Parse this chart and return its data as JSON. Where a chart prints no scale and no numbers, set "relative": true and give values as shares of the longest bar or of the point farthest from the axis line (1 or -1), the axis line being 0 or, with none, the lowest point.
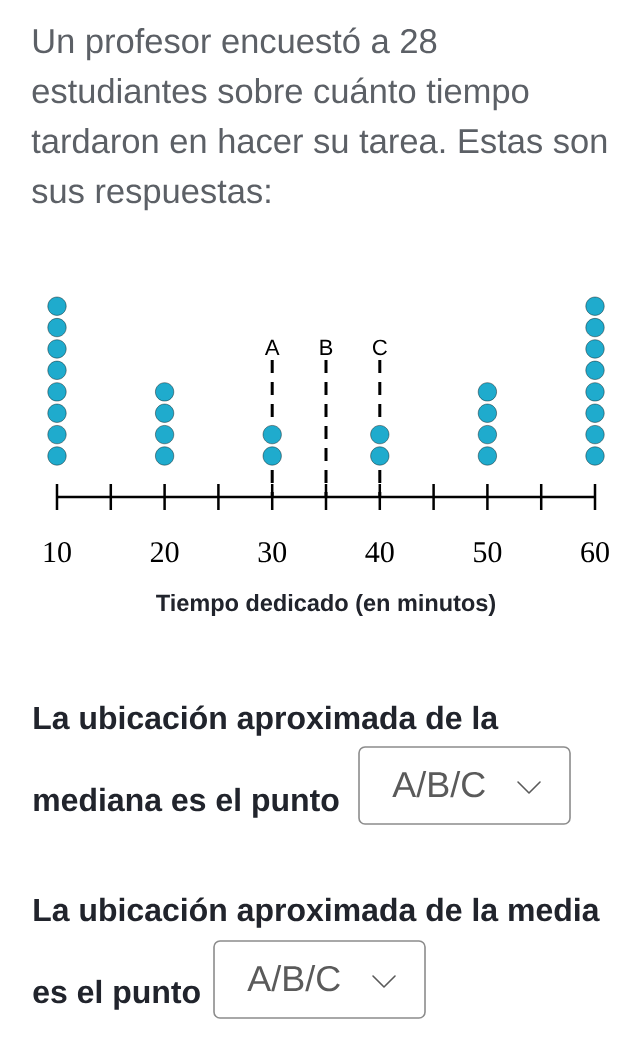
{
  "chart_data": {
    "type": "scatter",
    "title": "Un profesor encuestó a 28 estudiantes sobre cuánto tiempo tardaron en hacer su tarea. Estas son sus respuestas:",
    "xlabel": "Tiempo dedicado (en minutos)",
    "x": [
      10,
      10,
      10,
      10,
      10,
      10,
      10,
      10,
      20,
      20,
      20,
      20,
      30,
      30,
      40,
      40,
      50,
      50,
      50,
      50,
      60,
      60,
      60,
      60,
      60,
      60,
      60,
      60
    ],
    "values": [
      0.215,
      0.327,
      0.439,
      0.551,
      0.664,
      0.776,
      0.888,
      1,
      0.215,
      0.327,
      0.439,
      0.551,
      0.215,
      0.327,
      0.215,
      0.327,
      0.215,
      0.327,
      0.439,
      0.551,
      0.215,
      0.327,
      0.439,
      0.551,
      0.664,
      0.776,
      0.888,
      1
    ],
    "relative": true,
    "color": "#1fabcd",
    "marker": "circle",
    "xlim": [
      10,
      60
    ],
    "xticks": [
      10,
      {
        "value": 15,
        "label": null
      },
      20,
      {
        "value": 25,
        "label": null
      },
      30,
      {
        "value": 35,
        "label": null
      },
      40,
      {
        "value": 45,
        "label": null
      },
      50,
      {
        "value": 55,
        "label": null
      },
      60
    ],
    "tick_labels": "x",
    "ref_lines": [
      {
        "axis": "x",
        "value": 30,
        "label": "A",
        "color": "#000000",
        "line_style": "dashed"
      },
      {
        "axis": "x",
        "value": 35,
        "label": "B",
        "color": "#000000",
        "line_style": "dashed"
      },
      {
        "axis": "x",
        "value": 40,
        "label": "C",
        "color": "#000000",
        "line_style": "dashed"
      }
    ],
    "annotations": [
      "La ubicación aproximada de la mediana es el punto",
      "A/B/C",
      "La ubicación aproximada de la media es el punto",
      "A/B/C"
    ]
  }
}
